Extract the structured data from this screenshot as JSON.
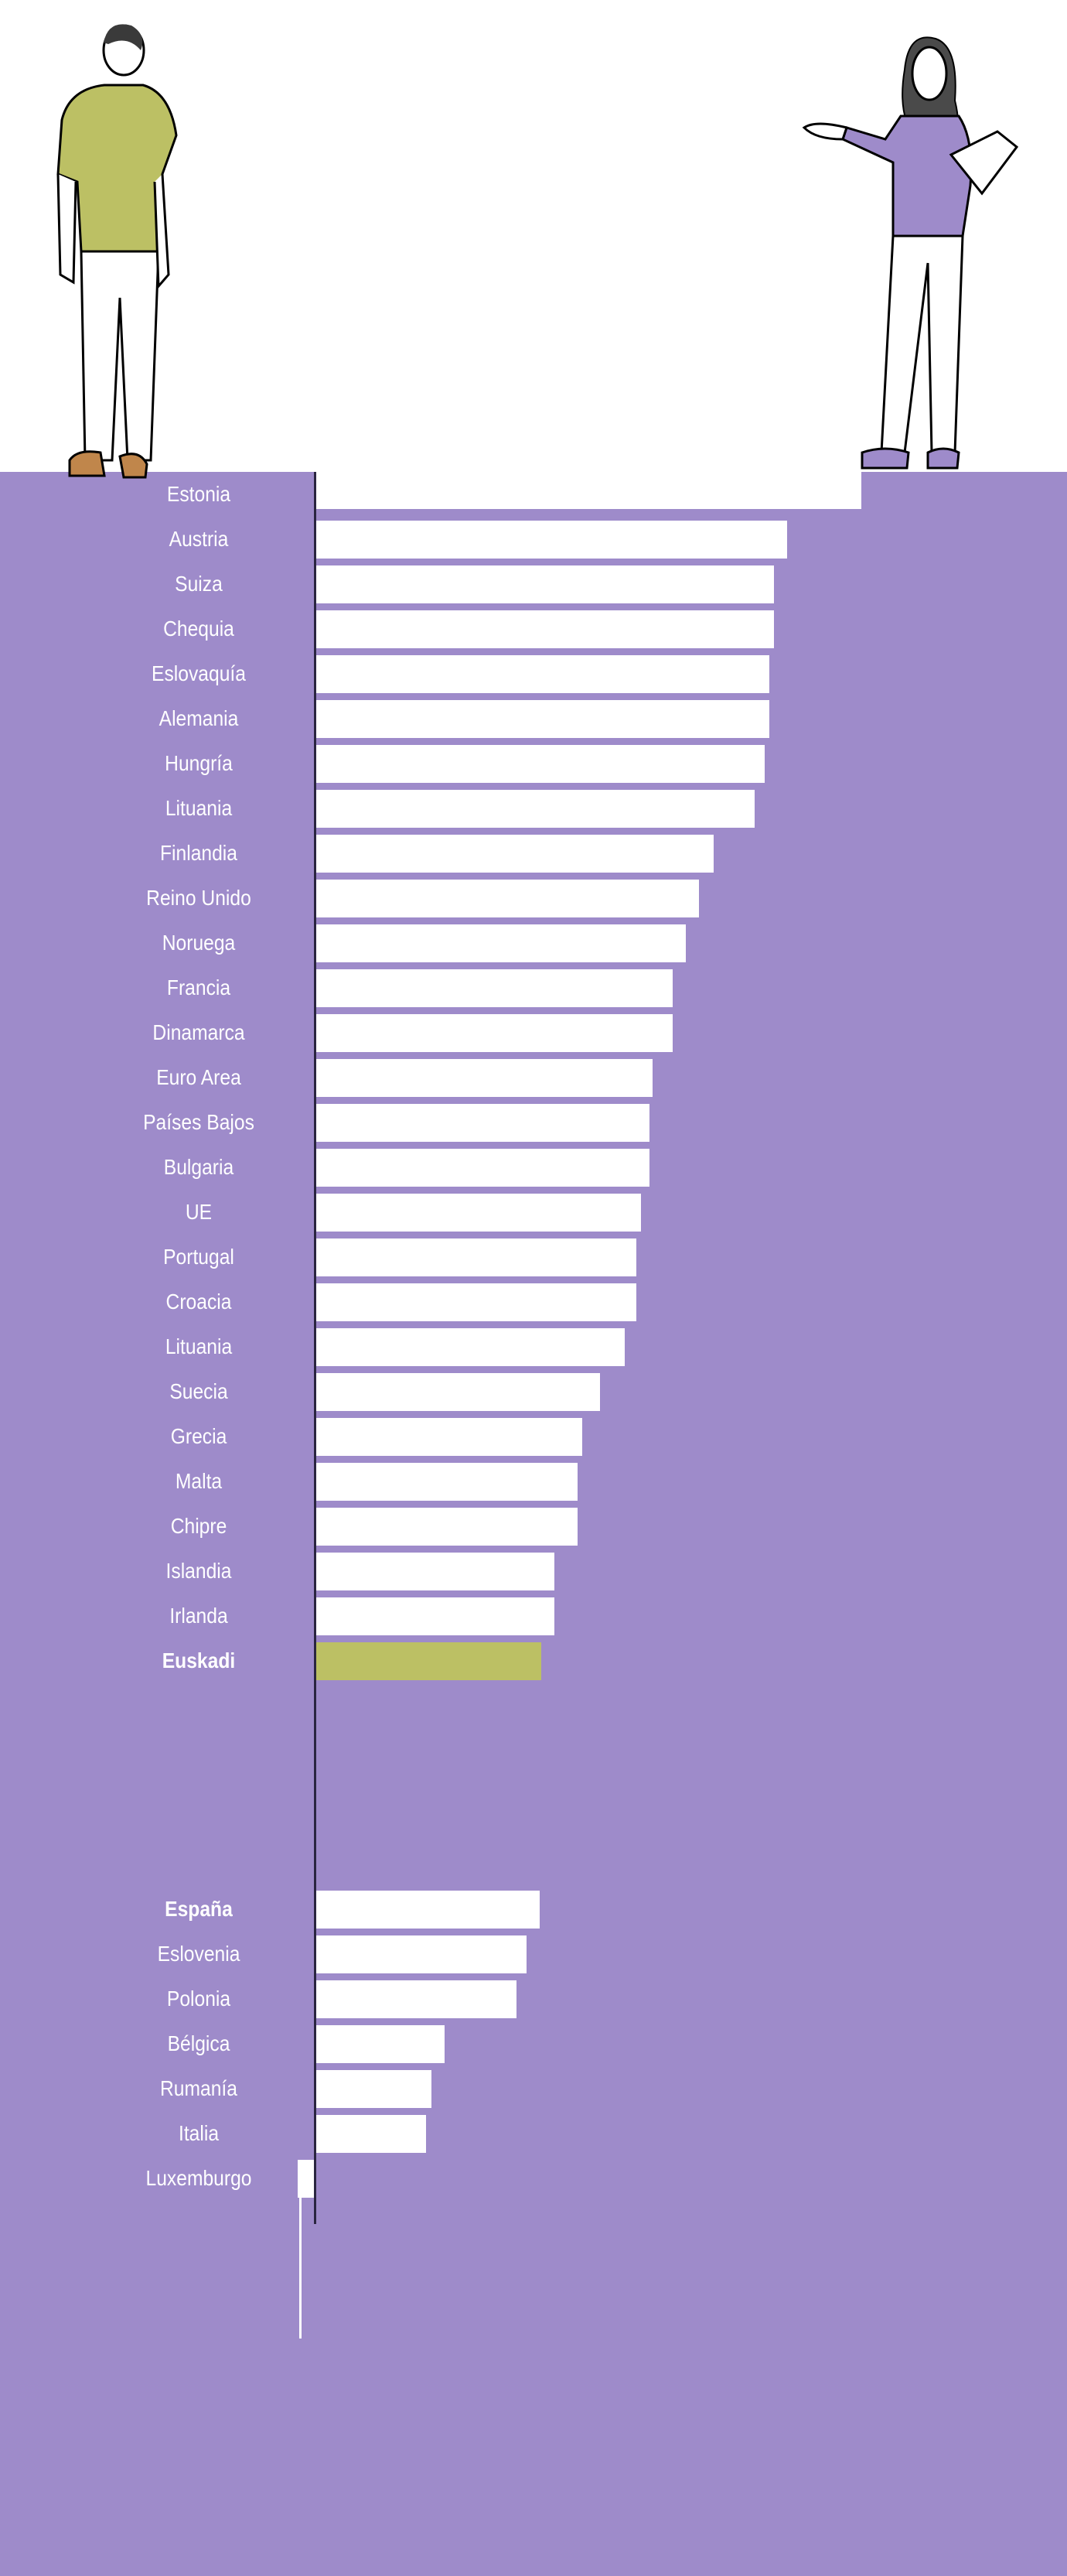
{
  "chart_data": {
    "type": "bar",
    "orientation": "horizontal",
    "title": "",
    "xlabel": "",
    "ylabel": "",
    "units": "relative (unlabeled axis)",
    "categories": [
      "Estonia",
      "Austria",
      "Suiza",
      "Chequia",
      "Eslovaquía",
      "Alemania",
      "Hungría",
      "Lituania",
      "Finlandia",
      "Reino Unido",
      "Noruega",
      "Francia",
      "Dinamarca",
      "Euro Area",
      "Países Bajos",
      "Bulgaria",
      "UE",
      "Portugal",
      "Croacia",
      "Lituania",
      "Suecia",
      "Grecia",
      "Malta",
      "Chipre",
      "Islandia",
      "Irlanda",
      "Euskadi",
      "España",
      "Eslovenia",
      "Polonia",
      "Bélgica",
      "Rumanía",
      "Italia",
      "Luxemburgo"
    ],
    "values": [
      332,
      287,
      279,
      279,
      276,
      276,
      273,
      267,
      242,
      233,
      225,
      217,
      217,
      205,
      203,
      203,
      198,
      195,
      195,
      188,
      173,
      162,
      159,
      159,
      145,
      145,
      137,
      136,
      128,
      122,
      78,
      70,
      67,
      -11
    ],
    "highlight": [
      "Euskadi",
      "España"
    ],
    "colors": {
      "default": "#ffffff",
      "Euskadi": "#bcc064",
      "background": "#9e8bca",
      "axis": "#2a2540"
    }
  }
}
